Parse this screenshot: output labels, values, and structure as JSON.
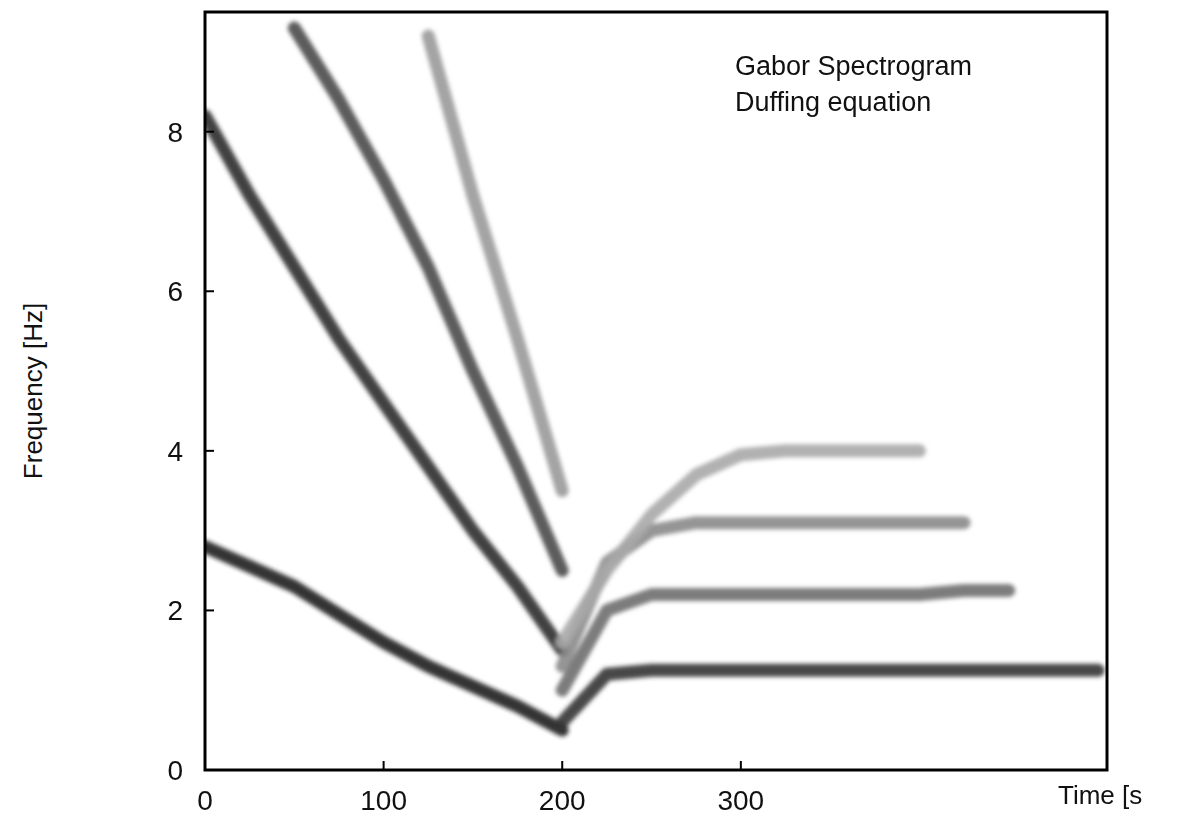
{
  "chart_data": {
    "type": "line",
    "annotations": [
      "Gabor Spectrogram",
      "Duffing equation"
    ],
    "x_label": "Time [s",
    "y_label": "Frequency [Hz]",
    "x": [
      0,
      25,
      50,
      75,
      100,
      125,
      150,
      175,
      200,
      225,
      250,
      275,
      300,
      325,
      350,
      375,
      400,
      425,
      450,
      475,
      500
    ],
    "xlim": [
      0,
      505
    ],
    "xticks": [
      0,
      100,
      200,
      300
    ],
    "ylim": [
      0,
      9.5
    ],
    "yticks": [
      0,
      2,
      4,
      6,
      8
    ],
    "grid": false,
    "series": [
      {
        "color": "#1e1e1e",
        "values": [
          2.8,
          2.55,
          2.3,
          1.95,
          1.6,
          1.3,
          1.05,
          0.8,
          0.5,
          null,
          null,
          null,
          null,
          null,
          null,
          null,
          null,
          null,
          null,
          null,
          null
        ]
      },
      {
        "color": "#2e2e2e",
        "values": [
          8.2,
          7.2,
          6.3,
          5.4,
          4.6,
          3.8,
          3.0,
          2.3,
          1.5,
          null,
          null,
          null,
          null,
          null,
          null,
          null,
          null,
          null,
          null,
          null,
          null
        ]
      },
      {
        "color": "#4a4a4a",
        "values": [
          null,
          null,
          9.3,
          8.4,
          7.4,
          6.3,
          5.0,
          3.8,
          2.5,
          null,
          null,
          null,
          null,
          null,
          null,
          null,
          null,
          null,
          null,
          null,
          null
        ]
      },
      {
        "color": "#9a9a9a",
        "values": [
          null,
          null,
          null,
          null,
          null,
          9.2,
          7.2,
          5.4,
          3.5,
          null,
          null,
          null,
          null,
          null,
          null,
          null,
          null,
          null,
          null,
          null,
          null
        ]
      },
      {
        "color": "#333333",
        "values": [
          null,
          null,
          null,
          null,
          null,
          null,
          null,
          null,
          0.6,
          1.2,
          1.25,
          1.25,
          1.25,
          1.25,
          1.25,
          1.25,
          1.25,
          1.25,
          1.25,
          1.25,
          1.25
        ]
      },
      {
        "color": "#6e6e6e",
        "values": [
          null,
          null,
          null,
          null,
          null,
          null,
          null,
          null,
          1.0,
          2.0,
          2.2,
          2.2,
          2.2,
          2.2,
          2.2,
          2.2,
          2.2,
          2.25,
          2.25,
          null,
          null
        ]
      },
      {
        "color": "#8a8a8a",
        "values": [
          null,
          null,
          null,
          null,
          null,
          null,
          null,
          null,
          1.3,
          2.6,
          3.0,
          3.1,
          3.1,
          3.1,
          3.1,
          3.1,
          3.1,
          3.1,
          null,
          null,
          null
        ]
      },
      {
        "color": "#a8a8a8",
        "values": [
          null,
          null,
          null,
          null,
          null,
          null,
          null,
          null,
          1.6,
          2.5,
          3.2,
          3.7,
          3.95,
          4.0,
          4.0,
          4.0,
          4.0,
          null,
          null,
          null,
          null
        ]
      }
    ]
  }
}
